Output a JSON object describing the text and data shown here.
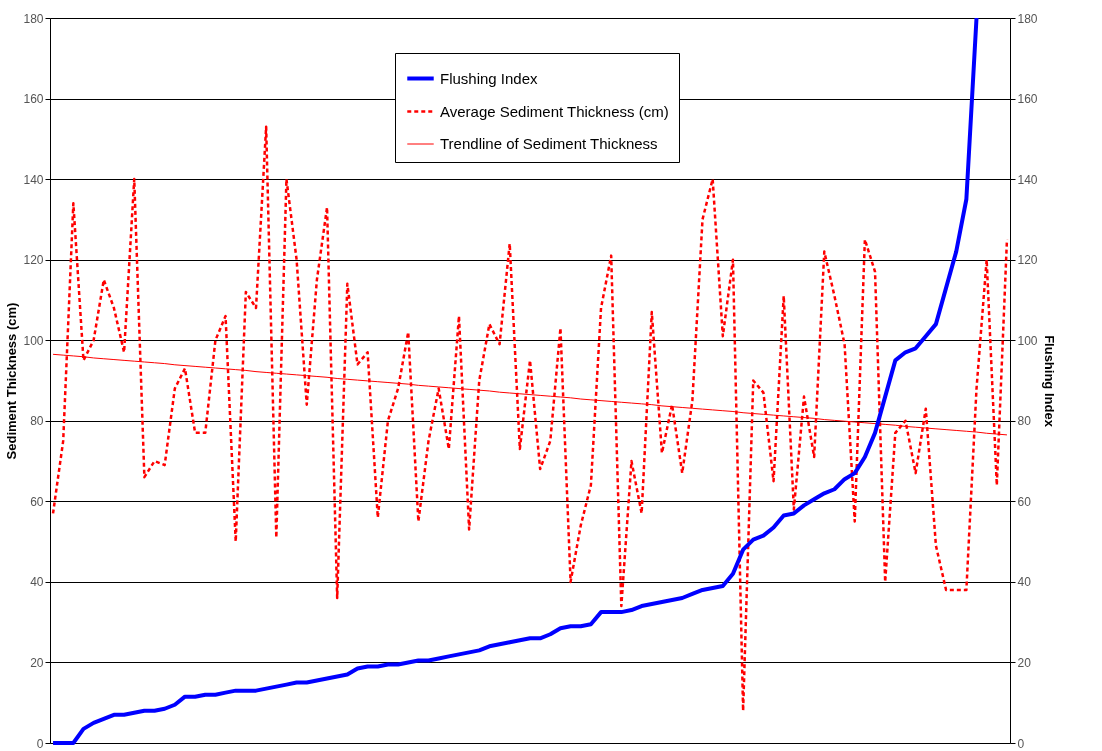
{
  "chart_data": {
    "type": "line",
    "categories": [
      null,
      null,
      null,
      null,
      null,
      null,
      null,
      null,
      null,
      null,
      null,
      null,
      null,
      null,
      null,
      null,
      null,
      null,
      null,
      null,
      null,
      null,
      null,
      null,
      null,
      null,
      null,
      null,
      null,
      null,
      null,
      null,
      null,
      null,
      null,
      null,
      null,
      null,
      null,
      null,
      null,
      null,
      null,
      null,
      null,
      null,
      null,
      null,
      null,
      null,
      null,
      null,
      null,
      null,
      null,
      null,
      null,
      null,
      null,
      null,
      null,
      null,
      null,
      null,
      null,
      null,
      null,
      null,
      null,
      null,
      null,
      null,
      null,
      null,
      null,
      null,
      null,
      null,
      null,
      null,
      null,
      null,
      null,
      null,
      null,
      null,
      null,
      null,
      null,
      null,
      null,
      null,
      null,
      null,
      null
    ],
    "ylabel": "Sediment Thickness (cm)",
    "y2label": "Flushing Index",
    "ylim": [
      0,
      180
    ],
    "yticks": [
      0,
      20,
      40,
      60,
      80,
      100,
      120,
      140,
      160,
      180
    ],
    "y2lim": [
      0,
      180
    ],
    "y2ticks": [
      0,
      20,
      40,
      60,
      80,
      100,
      120,
      140,
      160,
      180
    ],
    "grid": "y",
    "legend": "top",
    "marker": "none",
    "tick_labels": "y",
    "series": [
      {
        "name": "Flushing Index",
        "color": "#0000ff",
        "axis": "y2",
        "line_style": "solid",
        "values": [
          0,
          0,
          0,
          3.5,
          5,
          6,
          7,
          7,
          7.5,
          8,
          8,
          8.5,
          9.5,
          11.5,
          11.5,
          12,
          12,
          12.5,
          13,
          13,
          13,
          13.5,
          14,
          14.5,
          15,
          15,
          15.5,
          16,
          16.5,
          17,
          18.5,
          19,
          19,
          19.5,
          19.5,
          20,
          20.5,
          20.5,
          21,
          21.5,
          22,
          22.5,
          23,
          24,
          24.5,
          25,
          25.5,
          26,
          26,
          27,
          28.5,
          29,
          29,
          29.5,
          32.5,
          32.5,
          32.5,
          33,
          34,
          34.5,
          35,
          35.5,
          36,
          37,
          38,
          38.5,
          39,
          42,
          48,
          50.5,
          51.5,
          53.5,
          56.5,
          57,
          59,
          60.5,
          62,
          63,
          65.5,
          67,
          71,
          77,
          86,
          95,
          97,
          98,
          101,
          104,
          113,
          122,
          135,
          180,
          null,
          null,
          null
        ]
      },
      {
        "name": "Average Sediment Thickness (cm)",
        "color": "#ff0000",
        "line_style": "dashed",
        "values": [
          57,
          75,
          134,
          95,
          100,
          115,
          108,
          97,
          140,
          66,
          70,
          69,
          88,
          93,
          77,
          77,
          100,
          106,
          50,
          112,
          108,
          153,
          51,
          140,
          120,
          84,
          115,
          133,
          36,
          114,
          94,
          97,
          56,
          80,
          88,
          102,
          55,
          75,
          88,
          73,
          106,
          53,
          90,
          104,
          99,
          124,
          73,
          95,
          68,
          75,
          103,
          40,
          54,
          64,
          108,
          121,
          34,
          70,
          57,
          107,
          72,
          84,
          67,
          85,
          130,
          140,
          101,
          120,
          8,
          90,
          87,
          65,
          111,
          58,
          86,
          71,
          122,
          111,
          99,
          55,
          125,
          117,
          40,
          77,
          80,
          67,
          83,
          49,
          38,
          38,
          38,
          88,
          120,
          64,
          125
        ]
      },
      {
        "name": "Trendline of Sediment Thickness",
        "color": "#ff0000",
        "line_style": "solid",
        "values": [
          96.5,
          96.3,
          96.1,
          95.9,
          95.6,
          95.4,
          95.2,
          95.0,
          94.8,
          94.6,
          94.4,
          94.2,
          93.9,
          93.7,
          93.5,
          93.3,
          93.1,
          92.9,
          92.7,
          92.5,
          92.2,
          92.0,
          91.8,
          91.6,
          91.4,
          91.2,
          91.0,
          90.8,
          90.5,
          90.3,
          90.1,
          89.9,
          89.7,
          89.5,
          89.3,
          89.1,
          88.8,
          88.6,
          88.4,
          88.2,
          88.0,
          87.8,
          87.6,
          87.4,
          87.1,
          86.9,
          86.7,
          86.5,
          86.3,
          86.1,
          85.9,
          85.7,
          85.4,
          85.2,
          85.0,
          84.8,
          84.6,
          84.4,
          84.2,
          84.0,
          83.7,
          83.5,
          83.3,
          83.1,
          82.9,
          82.7,
          82.5,
          82.3,
          82.0,
          81.8,
          81.6,
          81.4,
          81.2,
          81.0,
          80.8,
          80.6,
          80.3,
          80.1,
          79.9,
          79.7,
          79.5,
          79.3,
          79.1,
          78.9,
          78.6,
          78.4,
          78.2,
          78.0,
          77.8,
          77.6,
          77.4,
          77.2,
          76.9,
          76.7,
          76.5
        ]
      }
    ]
  }
}
